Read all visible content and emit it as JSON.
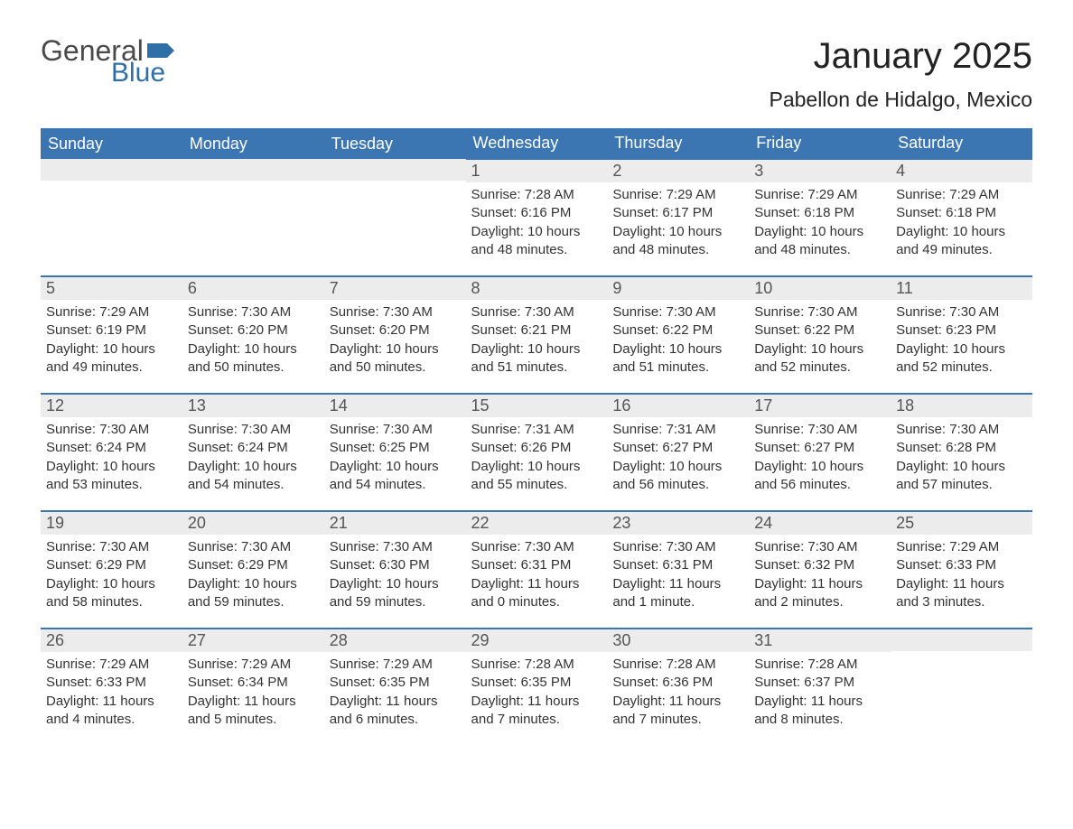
{
  "logo": {
    "word1": "General",
    "word2": "Blue",
    "flag_color": "#2f6fa7"
  },
  "title": "January 2025",
  "subtitle": "Pabellon de Hidalgo, Mexico",
  "colors": {
    "header_bg": "#3b76b3",
    "header_text": "#ffffff",
    "daynum_bg": "#ececec",
    "border": "#3b76b3",
    "body_text": "#333333"
  },
  "weekdays": [
    "Sunday",
    "Monday",
    "Tuesday",
    "Wednesday",
    "Thursday",
    "Friday",
    "Saturday"
  ],
  "weeks": [
    [
      null,
      null,
      null,
      {
        "n": "1",
        "sunrise": "Sunrise: 7:28 AM",
        "sunset": "Sunset: 6:16 PM",
        "daylight": "Daylight: 10 hours and 48 minutes."
      },
      {
        "n": "2",
        "sunrise": "Sunrise: 7:29 AM",
        "sunset": "Sunset: 6:17 PM",
        "daylight": "Daylight: 10 hours and 48 minutes."
      },
      {
        "n": "3",
        "sunrise": "Sunrise: 7:29 AM",
        "sunset": "Sunset: 6:18 PM",
        "daylight": "Daylight: 10 hours and 48 minutes."
      },
      {
        "n": "4",
        "sunrise": "Sunrise: 7:29 AM",
        "sunset": "Sunset: 6:18 PM",
        "daylight": "Daylight: 10 hours and 49 minutes."
      }
    ],
    [
      {
        "n": "5",
        "sunrise": "Sunrise: 7:29 AM",
        "sunset": "Sunset: 6:19 PM",
        "daylight": "Daylight: 10 hours and 49 minutes."
      },
      {
        "n": "6",
        "sunrise": "Sunrise: 7:30 AM",
        "sunset": "Sunset: 6:20 PM",
        "daylight": "Daylight: 10 hours and 50 minutes."
      },
      {
        "n": "7",
        "sunrise": "Sunrise: 7:30 AM",
        "sunset": "Sunset: 6:20 PM",
        "daylight": "Daylight: 10 hours and 50 minutes."
      },
      {
        "n": "8",
        "sunrise": "Sunrise: 7:30 AM",
        "sunset": "Sunset: 6:21 PM",
        "daylight": "Daylight: 10 hours and 51 minutes."
      },
      {
        "n": "9",
        "sunrise": "Sunrise: 7:30 AM",
        "sunset": "Sunset: 6:22 PM",
        "daylight": "Daylight: 10 hours and 51 minutes."
      },
      {
        "n": "10",
        "sunrise": "Sunrise: 7:30 AM",
        "sunset": "Sunset: 6:22 PM",
        "daylight": "Daylight: 10 hours and 52 minutes."
      },
      {
        "n": "11",
        "sunrise": "Sunrise: 7:30 AM",
        "sunset": "Sunset: 6:23 PM",
        "daylight": "Daylight: 10 hours and 52 minutes."
      }
    ],
    [
      {
        "n": "12",
        "sunrise": "Sunrise: 7:30 AM",
        "sunset": "Sunset: 6:24 PM",
        "daylight": "Daylight: 10 hours and 53 minutes."
      },
      {
        "n": "13",
        "sunrise": "Sunrise: 7:30 AM",
        "sunset": "Sunset: 6:24 PM",
        "daylight": "Daylight: 10 hours and 54 minutes."
      },
      {
        "n": "14",
        "sunrise": "Sunrise: 7:30 AM",
        "sunset": "Sunset: 6:25 PM",
        "daylight": "Daylight: 10 hours and 54 minutes."
      },
      {
        "n": "15",
        "sunrise": "Sunrise: 7:31 AM",
        "sunset": "Sunset: 6:26 PM",
        "daylight": "Daylight: 10 hours and 55 minutes."
      },
      {
        "n": "16",
        "sunrise": "Sunrise: 7:31 AM",
        "sunset": "Sunset: 6:27 PM",
        "daylight": "Daylight: 10 hours and 56 minutes."
      },
      {
        "n": "17",
        "sunrise": "Sunrise: 7:30 AM",
        "sunset": "Sunset: 6:27 PM",
        "daylight": "Daylight: 10 hours and 56 minutes."
      },
      {
        "n": "18",
        "sunrise": "Sunrise: 7:30 AM",
        "sunset": "Sunset: 6:28 PM",
        "daylight": "Daylight: 10 hours and 57 minutes."
      }
    ],
    [
      {
        "n": "19",
        "sunrise": "Sunrise: 7:30 AM",
        "sunset": "Sunset: 6:29 PM",
        "daylight": "Daylight: 10 hours and 58 minutes."
      },
      {
        "n": "20",
        "sunrise": "Sunrise: 7:30 AM",
        "sunset": "Sunset: 6:29 PM",
        "daylight": "Daylight: 10 hours and 59 minutes."
      },
      {
        "n": "21",
        "sunrise": "Sunrise: 7:30 AM",
        "sunset": "Sunset: 6:30 PM",
        "daylight": "Daylight: 10 hours and 59 minutes."
      },
      {
        "n": "22",
        "sunrise": "Sunrise: 7:30 AM",
        "sunset": "Sunset: 6:31 PM",
        "daylight": "Daylight: 11 hours and 0 minutes."
      },
      {
        "n": "23",
        "sunrise": "Sunrise: 7:30 AM",
        "sunset": "Sunset: 6:31 PM",
        "daylight": "Daylight: 11 hours and 1 minute."
      },
      {
        "n": "24",
        "sunrise": "Sunrise: 7:30 AM",
        "sunset": "Sunset: 6:32 PM",
        "daylight": "Daylight: 11 hours and 2 minutes."
      },
      {
        "n": "25",
        "sunrise": "Sunrise: 7:29 AM",
        "sunset": "Sunset: 6:33 PM",
        "daylight": "Daylight: 11 hours and 3 minutes."
      }
    ],
    [
      {
        "n": "26",
        "sunrise": "Sunrise: 7:29 AM",
        "sunset": "Sunset: 6:33 PM",
        "daylight": "Daylight: 11 hours and 4 minutes."
      },
      {
        "n": "27",
        "sunrise": "Sunrise: 7:29 AM",
        "sunset": "Sunset: 6:34 PM",
        "daylight": "Daylight: 11 hours and 5 minutes."
      },
      {
        "n": "28",
        "sunrise": "Sunrise: 7:29 AM",
        "sunset": "Sunset: 6:35 PM",
        "daylight": "Daylight: 11 hours and 6 minutes."
      },
      {
        "n": "29",
        "sunrise": "Sunrise: 7:28 AM",
        "sunset": "Sunset: 6:35 PM",
        "daylight": "Daylight: 11 hours and 7 minutes."
      },
      {
        "n": "30",
        "sunrise": "Sunrise: 7:28 AM",
        "sunset": "Sunset: 6:36 PM",
        "daylight": "Daylight: 11 hours and 7 minutes."
      },
      {
        "n": "31",
        "sunrise": "Sunrise: 7:28 AM",
        "sunset": "Sunset: 6:37 PM",
        "daylight": "Daylight: 11 hours and 8 minutes."
      },
      null
    ]
  ]
}
